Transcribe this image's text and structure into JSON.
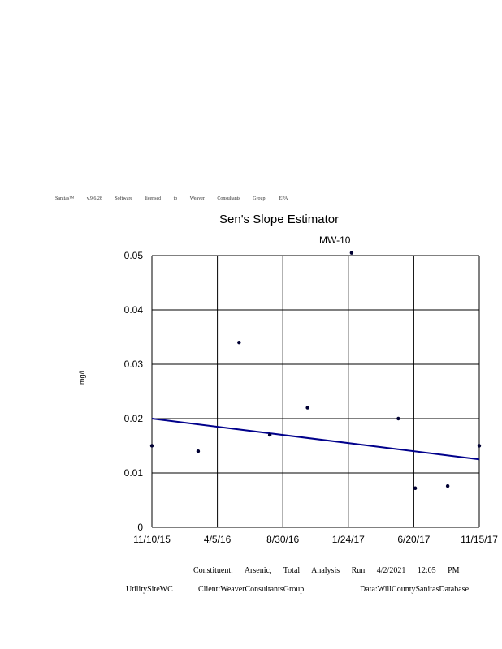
{
  "header": {
    "license_line": "Sanitas™ v.9.6.28 Software licensed to Weaver Consultants Group. EPA"
  },
  "chart_data": {
    "type": "scatter",
    "title": "Sen's Slope Estimator",
    "subtitle": "MW-10",
    "ylabel": "mg/L",
    "xlabel": "",
    "x_ticks": [
      "11/10/15",
      "4/5/16",
      "8/30/16",
      "1/24/17",
      "6/20/17",
      "11/15/17"
    ],
    "y_ticks": [
      "0",
      "0.01",
      "0.02",
      "0.03",
      "0.04",
      "0.05"
    ],
    "xlim": [
      "11/10/15",
      "11/15/17"
    ],
    "ylim": [
      0,
      0.05
    ],
    "grid": true,
    "series": [
      {
        "points": [
          {
            "x": "11/10/15",
            "y": 0.015
          },
          {
            "x": "2/22/16",
            "y": 0.014
          },
          {
            "x": "5/24/16",
            "y": 0.034
          },
          {
            "x": "8/1/16",
            "y": 0.017
          },
          {
            "x": "10/25/16",
            "y": 0.022
          },
          {
            "x": "2/1/17",
            "y": 0.0505
          },
          {
            "x": "5/17/17",
            "y": 0.02
          },
          {
            "x": "6/24/17",
            "y": 0.0072
          },
          {
            "x": "9/5/17",
            "y": 0.0076
          },
          {
            "x": "11/15/17",
            "y": 0.015
          }
        ]
      }
    ],
    "trend_line": {
      "x": [
        "11/10/15",
        "11/15/17"
      ],
      "y": [
        0.02,
        0.0125
      ]
    },
    "colors": {
      "points": "#000033",
      "trend": "#00008b",
      "grid": "#000000"
    }
  },
  "footer": {
    "line1": "Constituent: Arsenic, Total Analysis Run 4/2/2021 12:05 PM",
    "site": "UtilitySiteWC",
    "client": "Client:WeaverConsultantsGroup",
    "database": "Data:WillCountySanitasDatabase"
  }
}
